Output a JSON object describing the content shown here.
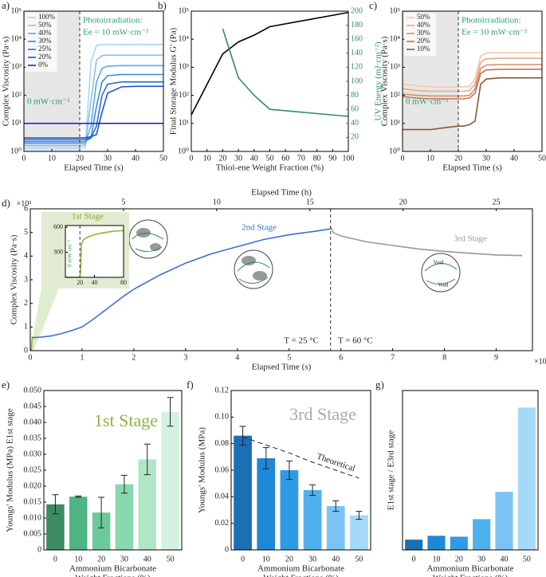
{
  "chart_data": [
    {
      "type": "line",
      "panel_label": "a)",
      "xlabel": "Elapsed Time (s)",
      "ylabel": "Complex Viscosity (Pa·s)",
      "xlim": [
        0,
        50
      ],
      "xticks": [
        0,
        10,
        20,
        30,
        40,
        50
      ],
      "ylim": [
        1,
        100000
      ],
      "log_y": true,
      "yticks": [
        {
          "value": 1,
          "label": "10⁰"
        },
        {
          "value": 10,
          "label": "10¹"
        },
        {
          "value": 100,
          "label": "10²"
        },
        {
          "value": 1000,
          "label": "10³"
        },
        {
          "value": 10000,
          "label": "10⁴"
        },
        {
          "value": 100000,
          "label": "10⁵"
        }
      ],
      "legend": "upper left",
      "dashed_line_x": 20,
      "shaded_before_line": true,
      "annotations": [
        "Photoirradiation:",
        "Ee = 10 mW·cm⁻²",
        "0 mW·cm⁻²"
      ],
      "x": [
        0,
        5,
        10,
        15,
        20,
        22,
        24,
        26,
        28,
        30,
        35,
        40,
        45,
        50
      ],
      "series": [
        {
          "name": "100%",
          "color": "#aad6f7",
          "values": [
            1.3,
            1.3,
            1.3,
            1.3,
            1.3,
            1.4,
            1500,
            6000,
            6500,
            6500,
            6500,
            6500,
            6500,
            6500
          ]
        },
        {
          "name": "50%",
          "color": "#87c2ef",
          "values": [
            1.6,
            1.6,
            1.6,
            1.6,
            1.6,
            1.7,
            60,
            1800,
            2600,
            2700,
            2700,
            2700,
            2700,
            2700
          ]
        },
        {
          "name": "40%",
          "color": "#5ea7e6",
          "values": [
            1.9,
            1.9,
            1.9,
            1.9,
            1.9,
            2,
            8,
            300,
            900,
            1100,
            1150,
            1150,
            1150,
            1150
          ]
        },
        {
          "name": "30%",
          "color": "#3b8ae0",
          "values": [
            2.2,
            2.2,
            2.2,
            2.2,
            2.2,
            2.3,
            3,
            40,
            300,
            500,
            550,
            550,
            550,
            550
          ]
        },
        {
          "name": "25%",
          "color": "#2b6fd5",
          "values": [
            2.6,
            2.6,
            2.6,
            2.6,
            2.6,
            2.7,
            3,
            8,
            100,
            250,
            300,
            300,
            300,
            300
          ]
        },
        {
          "name": "20%",
          "color": "#1f54c5",
          "values": [
            3,
            3,
            3,
            3,
            3,
            3.1,
            3.3,
            4,
            25,
            120,
            200,
            210,
            210,
            210
          ]
        },
        {
          "name": "0%",
          "color": "#1a2db0",
          "values": [
            10,
            10,
            10,
            10,
            10,
            10,
            10,
            10,
            10,
            10,
            10,
            10,
            10,
            10
          ]
        }
      ]
    },
    {
      "type": "line",
      "panel_label": "b)",
      "xlabel": "Thiol-ene Weight Fraction (%)",
      "ylabel": "Final Storage Modulus G' (Pa)",
      "y2label": "UV Energy (mJ·cm⁻²)",
      "xlim": [
        0,
        100
      ],
      "xticks": [
        0,
        10,
        20,
        30,
        40,
        50,
        60,
        70,
        80,
        90,
        100
      ],
      "ylim": [
        1,
        100000
      ],
      "log_y": true,
      "yticks": [
        {
          "value": 1,
          "label": "10⁰"
        },
        {
          "value": 10,
          "label": "10¹"
        },
        {
          "value": 100,
          "label": "10²"
        },
        {
          "value": 1000,
          "label": "10³"
        },
        {
          "value": 10000,
          "label": "10⁴"
        },
        {
          "value": 100000,
          "label": "10⁵"
        }
      ],
      "y2lim": [
        0,
        200
      ],
      "y2ticks": [
        20,
        40,
        60,
        80,
        100,
        120,
        140,
        160,
        180,
        200
      ],
      "x": [
        0,
        20,
        30,
        40,
        50,
        100
      ],
      "series": [
        {
          "color": "#000000",
          "values": [
            20,
            3000,
            8000,
            14000,
            28000,
            90000
          ]
        },
        {
          "color": "#2e8b6e",
          "axis": "y2",
          "values": [
            null,
            175,
            105,
            80,
            60,
            50
          ]
        }
      ]
    },
    {
      "type": "line",
      "panel_label": "c)",
      "xlabel": "Elapsed Time (s)",
      "ylabel": "Complex Viscosity (Pa·s)",
      "xlim": [
        0,
        50
      ],
      "xticks": [
        0,
        10,
        20,
        30,
        40,
        50
      ],
      "ylim": [
        1,
        100000
      ],
      "log_y": true,
      "yticks": [
        {
          "value": 1,
          "label": "10⁰"
        },
        {
          "value": 10,
          "label": "10¹"
        },
        {
          "value": 100,
          "label": "10²"
        },
        {
          "value": 1000,
          "label": "10³"
        },
        {
          "value": 10000,
          "label": "10⁴"
        },
        {
          "value": 100000,
          "label": "10⁵"
        }
      ],
      "legend": "upper left",
      "dashed_line_x": 20,
      "shaded_before_line": true,
      "annotations": [
        "Photoirradiation:",
        "Ee = 10 mW·cm⁻²",
        "0 mW·cm⁻²"
      ],
      "x": [
        0,
        5,
        10,
        15,
        20,
        22,
        24,
        26,
        28,
        30,
        35,
        40,
        45,
        50
      ],
      "series": [
        {
          "name": "50%",
          "color": "#f4c7ad",
          "values": [
            250,
            220,
            200,
            200,
            200,
            200,
            210,
            400,
            2500,
            3200,
            3300,
            3300,
            3300,
            3300
          ]
        },
        {
          "name": "40%",
          "color": "#eaa986",
          "values": [
            170,
            150,
            140,
            140,
            140,
            140,
            150,
            250,
            1500,
            2000,
            2100,
            2100,
            2100,
            2100
          ]
        },
        {
          "name": "30%",
          "color": "#db8d66",
          "values": [
            110,
            100,
            95,
            95,
            95,
            95,
            100,
            170,
            900,
            1200,
            1250,
            1250,
            1250,
            1250
          ]
        },
        {
          "name": "20%",
          "color": "#c47550",
          "values": [
            90,
            80,
            75,
            75,
            75,
            75,
            80,
            120,
            600,
            800,
            850,
            850,
            850,
            850
          ]
        },
        {
          "name": "10%",
          "color": "#8a5633",
          "values": [
            6,
            6,
            6,
            7,
            8,
            8,
            9,
            12,
            250,
            380,
            420,
            420,
            420,
            420
          ]
        }
      ]
    },
    {
      "type": "line",
      "panel_label": "d)",
      "xlabel": "Elapsed Time (s)",
      "ylabel": "Complex Viscosity (Pa·s)",
      "x2label": "Elapsed Time (h)",
      "xlim": [
        0,
        9.7
      ],
      "xticks": [
        0,
        1,
        2,
        3,
        4,
        5,
        6,
        7,
        8,
        9
      ],
      "ylim": [
        0,
        6
      ],
      "yticks": [
        0,
        1,
        2,
        3,
        4,
        5,
        6
      ],
      "x2lim": [
        0,
        26.94
      ],
      "x2ticks": [
        5,
        10,
        15,
        20,
        25
      ],
      "x_multiplier": "×10⁴",
      "y_multiplier": "×10³",
      "dashed_line_x": 5.8,
      "annotations": [
        "1st Stage",
        "2nd Stage",
        "3rd Stage",
        "T = 25 °C",
        "T = 60 °C",
        "Void",
        "Void"
      ],
      "series": [
        {
          "color": "#8db53c",
          "x": [
            0.02,
            0.03,
            0.04
          ],
          "values": [
            0,
            0.3,
            0.6
          ]
        },
        {
          "color": "#3b6fd4",
          "x": [
            0.04,
            0.1,
            0.2,
            0.4,
            0.6,
            0.8,
            1.0,
            1.2,
            1.5,
            1.8,
            2.0,
            2.5,
            3,
            3.5,
            4,
            4.5,
            5,
            5.5,
            5.8
          ],
          "values": [
            0.55,
            0.56,
            0.57,
            0.62,
            0.72,
            0.85,
            1.0,
            1.3,
            1.8,
            2.3,
            2.6,
            3.2,
            3.7,
            4.1,
            4.4,
            4.7,
            4.9,
            5.05,
            5.15
          ]
        },
        {
          "color": "#999999",
          "x": [
            5.8,
            5.85,
            6,
            6.5,
            7,
            7.5,
            8,
            8.5,
            9,
            9.5
          ],
          "values": [
            5.25,
            5.0,
            4.85,
            4.6,
            4.45,
            4.3,
            4.2,
            4.12,
            4.05,
            4.02
          ]
        }
      ],
      "inset": {
        "xlim": [
          0,
          80
        ],
        "xticks": [
          20,
          40,
          80
        ],
        "ylim": [
          0,
          620
        ],
        "yticks": [
          300,
          600
        ],
        "dashed_line_x": 20,
        "annotations": [
          "0 mW·cm⁻²"
        ],
        "x": [
          0,
          20,
          21,
          22,
          25,
          30,
          40,
          50,
          60,
          70,
          80
        ],
        "series": [
          {
            "color": "#8db53c",
            "values": [
              0,
              0,
              100,
              400,
              450,
              480,
              510,
              530,
              545,
              555,
              560
            ]
          }
        ]
      }
    },
    {
      "type": "bar",
      "panel_label": "e)",
      "xlabel": [
        "Ammonium Bicarbonate",
        "Weight Fractions (%)"
      ],
      "ylabel": "Youngs' Modulus (MPa) E1st stage",
      "categories": [
        "0",
        "10",
        "20",
        "30",
        "40",
        "50"
      ],
      "values": [
        0.0143,
        0.0167,
        0.0117,
        0.0206,
        0.0284,
        0.0433
      ],
      "errors": [
        0.003,
        0.0002,
        0.0048,
        0.0028,
        0.0048,
        0.0045
      ],
      "colors": [
        "#3d8a63",
        "#4fb584",
        "#6cc99a",
        "#8ad8ad",
        "#b0e6c6",
        "#d4f2df"
      ],
      "ylim": [
        0,
        0.05
      ],
      "yticks": [
        0,
        0.005,
        {
          "value": 0.01,
          "label": "0.010"
        },
        0.015,
        {
          "value": 0.02,
          "label": "0.020"
        },
        0.025,
        {
          "value": 0.03,
          "label": "0.030"
        },
        0.035,
        {
          "value": 0.04,
          "label": "0.040"
        },
        0.045,
        {
          "value": 0.05,
          "label": "0.050"
        }
      ],
      "annotations": [
        "1st Stage"
      ]
    },
    {
      "type": "bar",
      "panel_label": "f)",
      "xlabel": [
        "Ammonium Bicarbonate",
        "Weight Fractions (%)"
      ],
      "ylabel": "Youngs' Modulus (MPa)",
      "categories": [
        "0",
        "10",
        "20",
        "30",
        "40",
        "50"
      ],
      "values": [
        0.086,
        0.069,
        0.06,
        0.045,
        0.033,
        0.026
      ],
      "errors": [
        0.007,
        0.008,
        0.007,
        0.004,
        0.004,
        0.003
      ],
      "colors": [
        "#1a6fb5",
        "#1f88d6",
        "#2f9be6",
        "#4fb0ee",
        "#79c4f4",
        "#a6d8f8"
      ],
      "ylim": [
        0,
        0.12
      ],
      "yticks": [
        0,
        0.02,
        0.04,
        0.06,
        0.08,
        {
          "value": 0.1,
          "label": "0.10"
        },
        0.12
      ],
      "theoretical": {
        "name": "Theoretical",
        "values": [
          0.085,
          0.079,
          0.073,
          0.066,
          0.06,
          0.054
        ]
      },
      "annotations": [
        "3rd Stage"
      ]
    },
    {
      "type": "bar",
      "panel_label": "g)",
      "xlabel": [
        "Ammonium Bicarbonate",
        "Weight Fractions (%)"
      ],
      "ylabel": "E1st stage / E3rd stage",
      "categories": [
        "0",
        "10",
        "20",
        "30",
        "40",
        "50"
      ],
      "values": [
        0.45,
        0.62,
        0.58,
        1.35,
        2.55,
        6.25
      ],
      "colors": [
        "#1a6fb5",
        "#1f88d6",
        "#2f9be6",
        "#4fb0ee",
        "#79c4f4",
        "#a6d8f8"
      ],
      "ylim": [
        0,
        7
      ]
    }
  ]
}
